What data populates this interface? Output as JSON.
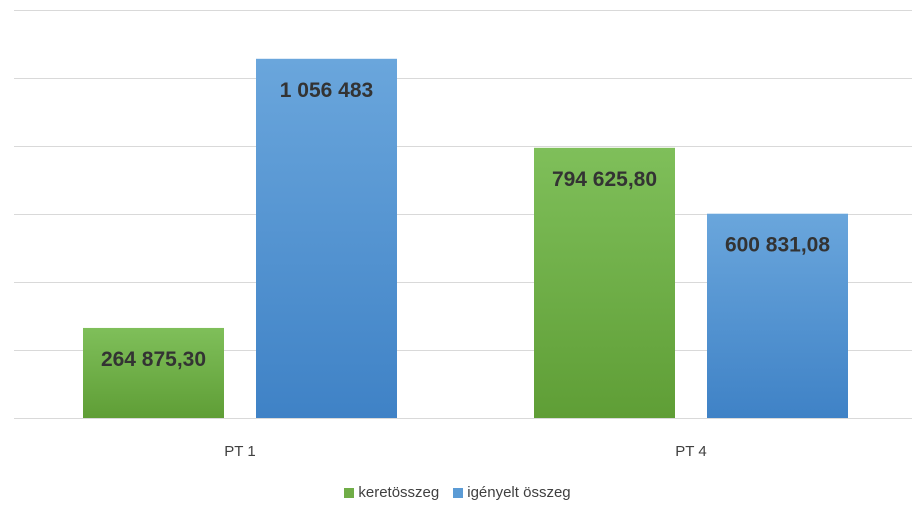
{
  "chart_data": {
    "type": "bar",
    "categories": [
      "PT 1",
      "PT 4"
    ],
    "series": [
      {
        "name": "keretösszeg",
        "values": [
          264875.3,
          794625.8
        ],
        "labels": [
          "264 875,30",
          "794 625,80"
        ]
      },
      {
        "name": "igényelt összeg",
        "values": [
          1056483,
          600831.08
        ],
        "labels": [
          "1 056 483",
          "600 831,08"
        ]
      }
    ],
    "ylim": [
      0,
      1200000
    ],
    "grid": true,
    "legend": "bottom"
  },
  "colors": {
    "keretosszeg": "#70ad47",
    "igenyelt": "#5b9bd5"
  }
}
